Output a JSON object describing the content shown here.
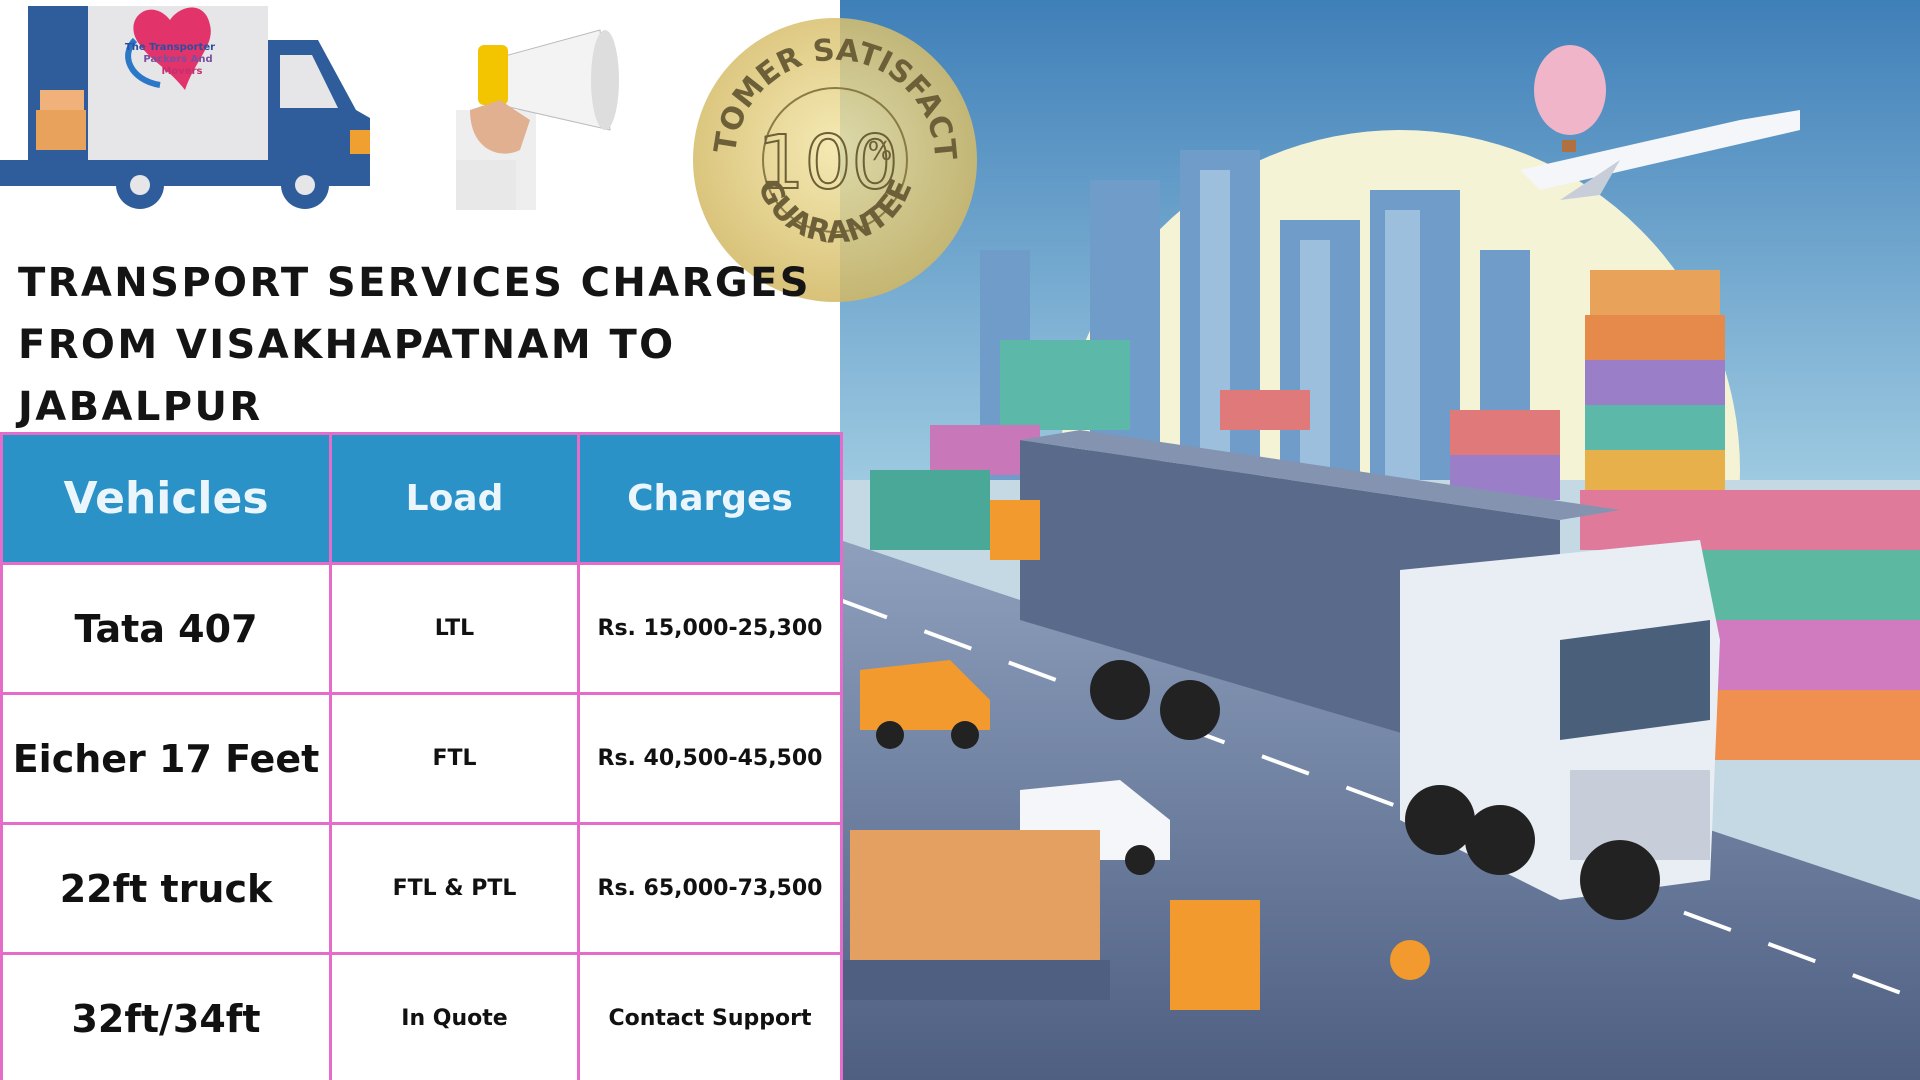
{
  "logo": {
    "lines": [
      "The Transporter",
      "Packers And",
      "Movers"
    ]
  },
  "badge": {
    "top": "CUSTOMER SATISFACTION",
    "number": "100",
    "unit": "%",
    "bottom": "GUARANTEE"
  },
  "header": {
    "title_lines": [
      "TRANSPORT SERVICES CHARGES",
      "FROM VISAKHAPATNAM TO",
      "JABALPUR"
    ]
  },
  "table": {
    "columns": [
      "Vehicles",
      "Load",
      "Charges"
    ],
    "rows": [
      [
        "Tata 407",
        "LTL",
        "Rs. 15,000-25,300"
      ],
      [
        "Eicher 17 Feet",
        "FTL",
        "Rs. 40,500-45,500"
      ],
      [
        "22ft truck",
        "FTL & PTL",
        "Rs. 65,000-73,500"
      ],
      [
        "32ft/34ft",
        "In Quote",
        "Contact Support"
      ]
    ]
  }
}
